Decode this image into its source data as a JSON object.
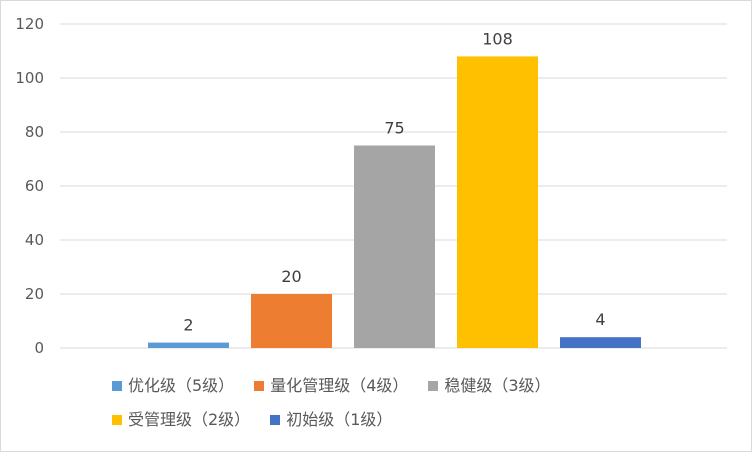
{
  "chart_data": {
    "type": "bar",
    "title": "",
    "xlabel": "",
    "ylabel": "",
    "ylim": [
      0,
      120
    ],
    "yticks": [
      0,
      20,
      40,
      60,
      80,
      100,
      120
    ],
    "grid": true,
    "legend_position": "bottom",
    "series": [
      {
        "name": "优化级（5级）",
        "value": 2,
        "color": "#5B9BD5"
      },
      {
        "name": "量化管理级（4级）",
        "value": 20,
        "color": "#ED7D31"
      },
      {
        "name": "稳健级（3级）",
        "value": 75,
        "color": "#A5A5A5"
      },
      {
        "name": "受管理级（2级）",
        "value": 108,
        "color": "#FFC000"
      },
      {
        "name": "初始级（1级）",
        "value": 4,
        "color": "#4472C4"
      }
    ]
  }
}
